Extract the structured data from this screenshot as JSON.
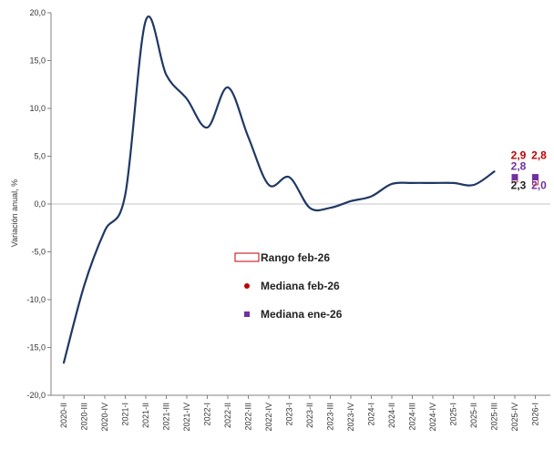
{
  "chart_data": {
    "type": "line",
    "title": "",
    "xlabel": "",
    "ylabel": "Variación anual, %",
    "ylim": [
      -20,
      20
    ],
    "yticks": [
      -20,
      -15,
      -10,
      -5,
      0,
      5,
      10,
      15,
      20
    ],
    "ytick_labels": [
      "-20,0",
      "-15,0",
      "-10,0",
      "-5,0",
      "0,0",
      "5,0",
      "10,0",
      "15,0",
      "20,0"
    ],
    "categories": [
      "2020-II",
      "2020-III",
      "2020-IV",
      "2021-I",
      "2021-II",
      "2021-III",
      "2021-IV",
      "2022-I",
      "2022-II",
      "2022-III",
      "2022-IV",
      "2023-I",
      "2023-II",
      "2023-III",
      "2023-IV",
      "2024-I",
      "2024-II",
      "2024-III",
      "2024-IV",
      "2025-I",
      "2025-II",
      "2025-III",
      "2025-IV",
      "2026-I"
    ],
    "series": [
      {
        "values": [
          -16.6,
          -8.5,
          -2.8,
          1.0,
          19.2,
          13.5,
          11.0,
          8.0,
          12.2,
          7.0,
          2.0,
          2.8,
          -0.4,
          -0.4,
          0.3,
          0.8,
          2.1,
          2.2,
          2.2,
          2.2,
          2.0,
          3.4,
          null,
          null
        ],
        "color": "#1f3864"
      }
    ],
    "range_feb26": [
      {
        "category": "2025-IV",
        "low": 2.3,
        "high": 2.9
      },
      {
        "category": "2026-I",
        "low": 2.0,
        "high": 2.8
      }
    ],
    "median_feb26": [
      {
        "category": "2025-IV",
        "value": 2.8
      },
      {
        "category": "2026-I",
        "value": 2.8
      }
    ],
    "median_jan26": [
      {
        "category": "2025-IV",
        "value": 2.8
      },
      {
        "category": "2026-I",
        "value": 2.8
      }
    ],
    "annotations": [
      {
        "text": "2,9",
        "category": "2025-IV",
        "role": "high",
        "color": "#c00000"
      },
      {
        "text": "2,8",
        "category": "2025-IV",
        "role": "median",
        "color": "#7030a0"
      },
      {
        "text": "2,3",
        "category": "2025-IV",
        "role": "low",
        "color": "#222222"
      },
      {
        "text": "2,8",
        "category": "2026-I",
        "role": "high",
        "color": "#c00000"
      },
      {
        "text": "2,0",
        "category": "2026-I",
        "role": "low",
        "color": "#7030a0"
      }
    ],
    "legend": {
      "placement": "center",
      "items": [
        {
          "label": "Rango feb-26",
          "marker": "rect-outline",
          "color": "#c00000"
        },
        {
          "label": "Mediana feb-26",
          "marker": "circle",
          "color": "#c00000"
        },
        {
          "label": "Mediana ene-26",
          "marker": "square",
          "color": "#7030a0"
        }
      ]
    },
    "grid": false,
    "zero_line_color": "#d9d9d9",
    "axis_color": "#808080"
  }
}
